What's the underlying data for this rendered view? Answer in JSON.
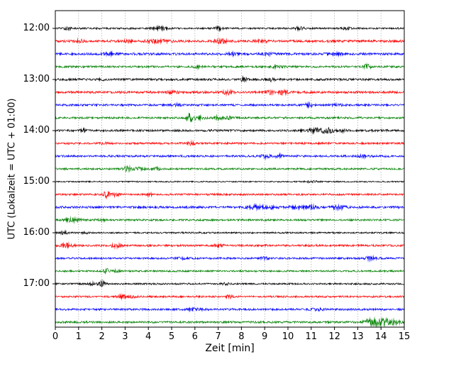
{
  "chart_data": {
    "type": "line",
    "title": "",
    "xlabel": "Zeit  [min]",
    "ylabel": "UTC (Lokalzeit = UTC + 01:00)",
    "xlim": [
      0,
      15
    ],
    "x_ticks": [
      0,
      1,
      2,
      3,
      4,
      5,
      6,
      7,
      8,
      9,
      10,
      11,
      12,
      13,
      14,
      15
    ],
    "y_tick_labels": [
      "12:00",
      "13:00",
      "14:00",
      "15:00",
      "16:00",
      "17:00"
    ],
    "rows_per_hour": 4,
    "minutes_per_row": 15,
    "legend": "none",
    "grid": {
      "vertical": "dotted",
      "horizontal": "none",
      "color": "#8a8a8a"
    },
    "color_cycle": [
      "#000000",
      "#ff0000",
      "#0000ff",
      "#008000"
    ],
    "events_format": "[minute, peak_amplitude_px, width_min]",
    "traces": [
      {
        "time": "12:00",
        "color": "#000000",
        "noise": 1.2,
        "events": [
          [
            0.5,
            1.4,
            0.2
          ],
          [
            4.5,
            2.0,
            0.3
          ],
          [
            7.0,
            1.8,
            0.2
          ],
          [
            10.5,
            1.6,
            0.25
          ],
          [
            12.5,
            1.2,
            0.2
          ]
        ]
      },
      {
        "time": "12:15",
        "color": "#ff0000",
        "noise": 1.6,
        "events": [
          [
            1.05,
            2.0,
            0.15
          ],
          [
            3.1,
            1.4,
            0.15
          ],
          [
            4.4,
            2.2,
            0.45
          ],
          [
            7.1,
            3.0,
            0.25
          ],
          [
            8.9,
            1.3,
            0.25
          ]
        ]
      },
      {
        "time": "12:30",
        "color": "#0000ff",
        "noise": 1.6,
        "events": [
          [
            2.3,
            1.4,
            0.25
          ],
          [
            7.6,
            1.4,
            0.2
          ],
          [
            9.2,
            1.2,
            0.25
          ],
          [
            12.0,
            1.1,
            0.3
          ]
        ]
      },
      {
        "time": "12:45",
        "color": "#008000",
        "noise": 1.4,
        "events": [
          [
            6.1,
            1.4,
            0.2
          ],
          [
            9.5,
            1.1,
            0.25
          ],
          [
            13.4,
            3.5,
            0.15
          ]
        ]
      },
      {
        "time": "13:00",
        "color": "#000000",
        "noise": 1.5,
        "events": [
          [
            2.0,
            1.2,
            0.15
          ],
          [
            8.1,
            3.0,
            0.12
          ],
          [
            9.3,
            3.6,
            0.1
          ]
        ]
      },
      {
        "time": "13:15",
        "color": "#ff0000",
        "noise": 1.6,
        "events": [
          [
            5.0,
            1.3,
            0.25
          ],
          [
            7.4,
            2.6,
            0.2
          ],
          [
            9.25,
            3.0,
            0.15
          ],
          [
            9.8,
            3.2,
            0.2
          ]
        ]
      },
      {
        "time": "13:30",
        "color": "#0000ff",
        "noise": 1.4,
        "events": [
          [
            5.2,
            1.2,
            0.2
          ],
          [
            10.9,
            3.5,
            0.15
          ],
          [
            12.1,
            1.2,
            0.25
          ]
        ]
      },
      {
        "time": "13:45",
        "color": "#008000",
        "noise": 1.4,
        "events": [
          [
            5.75,
            5.5,
            0.15
          ],
          [
            6.15,
            2.2,
            0.3
          ],
          [
            7.0,
            2.8,
            0.18
          ],
          [
            7.45,
            1.8,
            0.15
          ]
        ]
      },
      {
        "time": "14:00",
        "color": "#000000",
        "noise": 1.5,
        "events": [
          [
            1.2,
            2.2,
            0.12
          ],
          [
            11.15,
            2.8,
            0.3
          ],
          [
            11.7,
            3.0,
            0.3
          ],
          [
            12.35,
            1.6,
            0.15
          ]
        ]
      },
      {
        "time": "14:15",
        "color": "#ff0000",
        "noise": 1.4,
        "events": [
          [
            2.1,
            1.1,
            0.15
          ],
          [
            5.85,
            2.0,
            0.15
          ]
        ]
      },
      {
        "time": "14:30",
        "color": "#0000ff",
        "noise": 1.4,
        "events": [
          [
            9.05,
            2.4,
            0.2
          ],
          [
            9.6,
            2.0,
            0.18
          ],
          [
            13.2,
            1.2,
            0.25
          ]
        ]
      },
      {
        "time": "14:45",
        "color": "#008000",
        "noise": 1.3,
        "events": [
          [
            3.1,
            3.5,
            0.18
          ],
          [
            3.6,
            1.8,
            0.25
          ],
          [
            4.35,
            1.5,
            0.15
          ]
        ]
      },
      {
        "time": "15:00",
        "color": "#000000",
        "noise": 0.9,
        "events": [
          [
            11.0,
            1.0,
            0.3
          ]
        ]
      },
      {
        "time": "15:15",
        "color": "#ff0000",
        "noise": 1.3,
        "events": [
          [
            2.2,
            4.5,
            0.13
          ],
          [
            2.55,
            2.2,
            0.2
          ],
          [
            4.05,
            1.8,
            0.12
          ]
        ]
      },
      {
        "time": "15:30",
        "color": "#0000ff",
        "noise": 1.5,
        "events": [
          [
            8.6,
            2.5,
            0.3
          ],
          [
            9.3,
            1.8,
            0.25
          ],
          [
            10.3,
            1.5,
            0.3
          ],
          [
            11.0,
            2.2,
            0.35
          ],
          [
            12.2,
            2.5,
            0.3
          ]
        ]
      },
      {
        "time": "15:45",
        "color": "#008000",
        "noise": 1.3,
        "events": [
          [
            0.75,
            2.2,
            0.35
          ],
          [
            2.0,
            1.1,
            0.2
          ]
        ]
      },
      {
        "time": "16:00",
        "color": "#000000",
        "noise": 1.1,
        "events": [
          [
            0.35,
            2.0,
            0.2
          ],
          [
            1.3,
            1.2,
            0.15
          ]
        ]
      },
      {
        "time": "16:15",
        "color": "#ff0000",
        "noise": 1.4,
        "events": [
          [
            0.5,
            2.4,
            0.3
          ],
          [
            2.6,
            2.4,
            0.22
          ],
          [
            7.0,
            1.2,
            0.25
          ]
        ]
      },
      {
        "time": "16:30",
        "color": "#0000ff",
        "noise": 1.3,
        "events": [
          [
            5.5,
            1.1,
            0.3
          ],
          [
            9.0,
            1.5,
            0.2
          ],
          [
            13.5,
            2.0,
            0.3
          ]
        ]
      },
      {
        "time": "16:45",
        "color": "#008000",
        "noise": 1.2,
        "events": [
          [
            2.2,
            3.2,
            0.13
          ],
          [
            2.65,
            1.4,
            0.15
          ]
        ]
      },
      {
        "time": "17:00",
        "color": "#000000",
        "noise": 1.2,
        "events": [
          [
            1.6,
            1.5,
            0.15
          ],
          [
            2.0,
            4.0,
            0.15
          ],
          [
            7.3,
            1.2,
            0.2
          ]
        ]
      },
      {
        "time": "17:15",
        "color": "#ff0000",
        "noise": 1.3,
        "events": [
          [
            2.9,
            2.4,
            0.18
          ],
          [
            3.35,
            1.4,
            0.15
          ],
          [
            7.5,
            1.7,
            0.18
          ]
        ]
      },
      {
        "time": "17:30",
        "color": "#0000ff",
        "noise": 1.4,
        "events": [
          [
            6.0,
            1.1,
            0.4
          ],
          [
            11.3,
            1.3,
            0.3
          ]
        ]
      },
      {
        "time": "17:45",
        "color": "#008000",
        "noise": 1.4,
        "events": [
          [
            13.5,
            3.0,
            0.25
          ],
          [
            14.0,
            5.0,
            0.4
          ],
          [
            14.6,
            2.5,
            0.25
          ]
        ]
      }
    ]
  }
}
